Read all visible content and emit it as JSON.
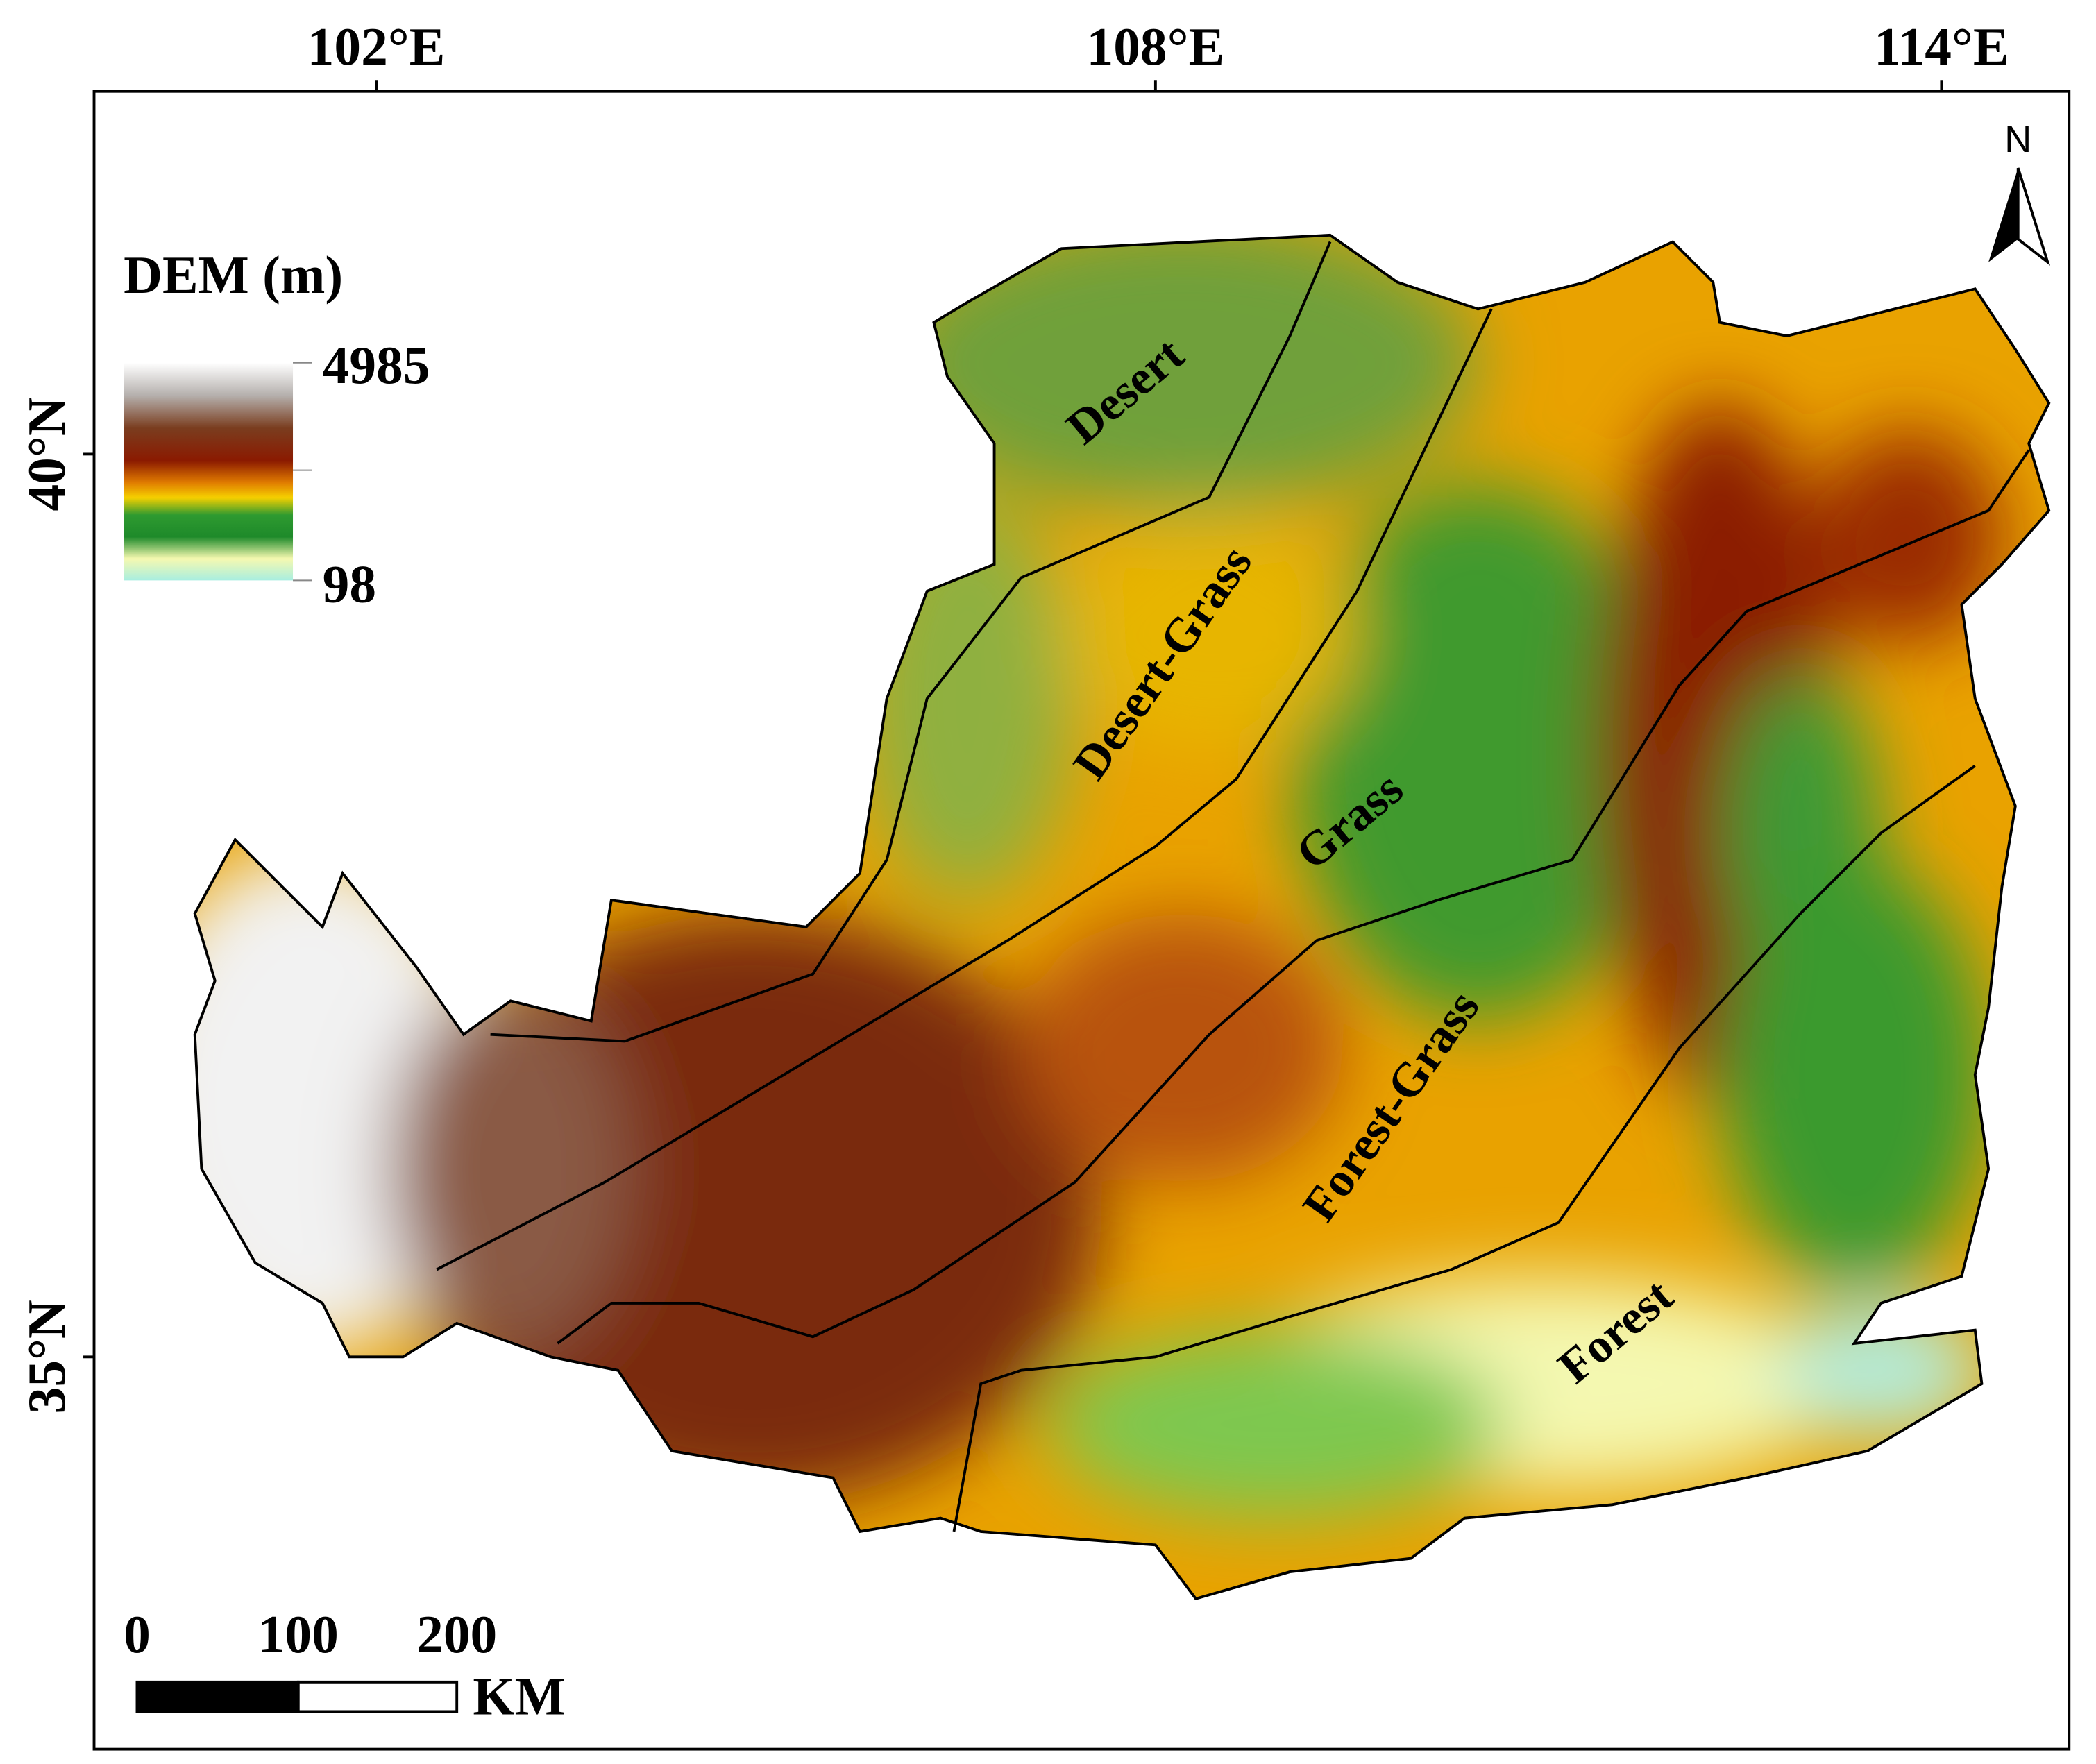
{
  "map": {
    "longitude_labels": [
      "102°E",
      "108°E",
      "114°E"
    ],
    "latitude_labels": [
      "40°N",
      "35°N"
    ],
    "north": "N",
    "legend": {
      "title": "DEM (m)",
      "max": 4985,
      "min": 98
    },
    "scale_bar": {
      "labels": [
        0,
        100,
        200
      ],
      "unit": "KM"
    },
    "zones": [
      "Desert",
      "Desert-Grass",
      "Grass",
      "Forest-Grass",
      "Forest"
    ]
  }
}
